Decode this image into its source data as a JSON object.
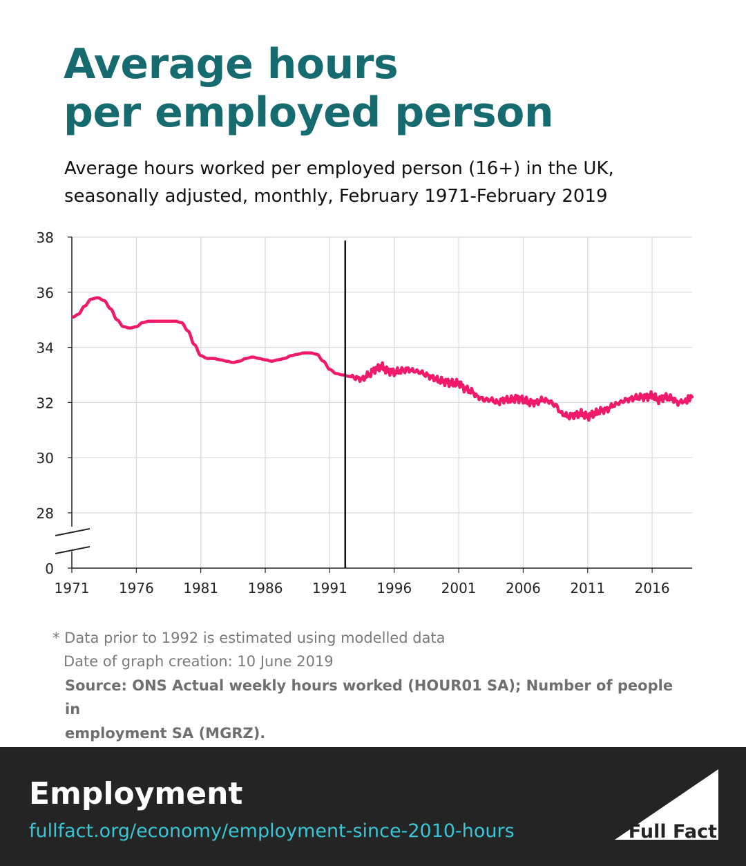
{
  "header": {
    "title_line1": "Average hours",
    "title_line2": "per employed person",
    "subtitle_line1": "Average hours worked per employed person (16+) in the UK,",
    "subtitle_line2": "seasonally adjusted, monthly, February 1971-February 2019"
  },
  "chart_data": {
    "type": "line",
    "title": "Average hours per employed person",
    "xlabel": "",
    "ylabel": "",
    "xlim": [
      1971,
      2019.1
    ],
    "ylim": [
      27,
      38
    ],
    "y_axis_break": true,
    "yticks": [
      0,
      28,
      30,
      32,
      34,
      36,
      38
    ],
    "xticks": [
      1971,
      1976,
      1981,
      1986,
      1991,
      1996,
      2001,
      2006,
      2011,
      2016
    ],
    "grid": true,
    "legend": "none",
    "line_color": "#f0196a",
    "marker_line_year": 1992.2,
    "series": [
      {
        "x": [
          1971.1,
          1971.5,
          1972.0,
          1972.5,
          1973.0,
          1973.5,
          1974.0,
          1974.5,
          1975.0,
          1975.5,
          1976.0,
          1976.5,
          1977.0,
          1977.5,
          1978.0,
          1978.5,
          1979.0,
          1979.5,
          1980.0,
          1980.5,
          1981.0,
          1981.5,
          1982.0,
          1982.5,
          1983.0,
          1983.5,
          1984.0,
          1984.5,
          1985.0,
          1985.5,
          1986.0,
          1986.5,
          1987.0,
          1987.5,
          1988.0,
          1988.5,
          1989.0,
          1989.5,
          1990.0,
          1990.5,
          1991.0,
          1991.5,
          1992.0,
          1992.5,
          1993.0,
          1993.5,
          1994.0,
          1994.5,
          1995.0,
          1995.5,
          1996.0,
          1996.5,
          1997.0,
          1997.5,
          1998.0,
          1998.5,
          1999.0,
          1999.5,
          2000.0,
          2000.5,
          2001.0,
          2001.5,
          2002.0,
          2002.5,
          2003.0,
          2003.5,
          2004.0,
          2004.5,
          2005.0,
          2005.5,
          2006.0,
          2006.5,
          2007.0,
          2007.5,
          2008.0,
          2008.5,
          2009.0,
          2009.5,
          2010.0,
          2010.5,
          2011.0,
          2011.5,
          2012.0,
          2012.5,
          2013.0,
          2013.5,
          2014.0,
          2014.5,
          2015.0,
          2015.5,
          2016.0,
          2016.5,
          2017.0,
          2017.5,
          2018.0,
          2018.5,
          2019.1
        ],
        "values": [
          35.1,
          35.2,
          35.5,
          35.75,
          35.8,
          35.7,
          35.4,
          35.0,
          34.75,
          34.7,
          34.75,
          34.9,
          34.95,
          34.95,
          34.95,
          34.95,
          34.95,
          34.9,
          34.6,
          34.1,
          33.7,
          33.6,
          33.6,
          33.55,
          33.5,
          33.45,
          33.5,
          33.6,
          33.65,
          33.6,
          33.55,
          33.5,
          33.55,
          33.6,
          33.7,
          33.75,
          33.8,
          33.8,
          33.75,
          33.5,
          33.2,
          33.05,
          33.0,
          32.95,
          32.9,
          32.85,
          33.0,
          33.2,
          33.3,
          33.15,
          33.1,
          33.15,
          33.2,
          33.15,
          33.1,
          33.0,
          32.9,
          32.8,
          32.75,
          32.7,
          32.7,
          32.5,
          32.4,
          32.2,
          32.1,
          32.1,
          32.0,
          32.1,
          32.1,
          32.15,
          32.1,
          32.0,
          32.0,
          32.1,
          32.05,
          31.9,
          31.6,
          31.5,
          31.55,
          31.6,
          31.5,
          31.6,
          31.7,
          31.75,
          31.9,
          32.0,
          32.1,
          32.15,
          32.2,
          32.2,
          32.25,
          32.1,
          32.2,
          32.15,
          32.0,
          32.05,
          32.2
        ]
      }
    ]
  },
  "notes": {
    "note": "* Data prior to 1992 is estimated using modelled data",
    "date": "Date of graph creation: 10 June 2019",
    "source_line1": "Source: ONS Actual weekly hours worked (HOUR01 SA); Number of people in",
    "source_line2": "employment SA (MGRZ)."
  },
  "footer": {
    "topic": "Employment",
    "link": "fullfact.org/economy/employment-since-2010-hours",
    "logo_text": "Full Fact"
  }
}
